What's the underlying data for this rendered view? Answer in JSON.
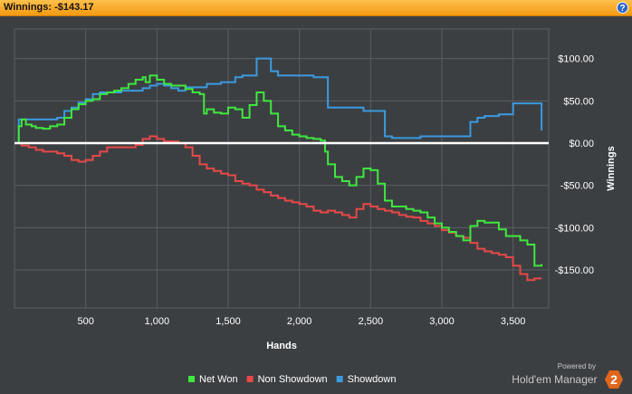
{
  "header": {
    "label": "Winnings:",
    "value": "-$143.17",
    "help_icon": "?"
  },
  "colors": {
    "net_won": "#3ee83e",
    "non_showdown": "#e84848",
    "showdown": "#3a9ae0",
    "zero_line": "#ffffff",
    "plot_bg": "#3c3f42",
    "grid": "#5a5e62",
    "header_bg": "#f39a11"
  },
  "branding": {
    "powered_by": "Powered by",
    "name": "Hold'em Manager",
    "logo_text": "2"
  },
  "chart_data": {
    "type": "line",
    "xlabel": "Hands",
    "ylabel": "Winnings",
    "xlim": [
      0,
      3750
    ],
    "ylim": [
      -195,
      135
    ],
    "x_ticks": [
      500,
      1000,
      1500,
      2000,
      2500,
      3000,
      3500
    ],
    "x_tick_labels": [
      "500",
      "1,000",
      "1,500",
      "2,000",
      "2,500",
      "3,000",
      "3,500"
    ],
    "y_ticks": [
      100,
      50,
      0,
      -50,
      -100,
      -150
    ],
    "y_tick_labels": [
      "$100.00",
      "$50.00",
      "$0.00",
      "-$50.00",
      "-$100.00",
      "-$150.00"
    ],
    "y_axis_position": "right",
    "grid": true,
    "legend_position": "bottom-center",
    "series": [
      {
        "name": "Net Won",
        "points": [
          [
            0,
            0
          ],
          [
            30,
            20
          ],
          [
            50,
            28
          ],
          [
            80,
            22
          ],
          [
            120,
            20
          ],
          [
            150,
            18
          ],
          [
            200,
            17
          ],
          [
            250,
            20
          ],
          [
            300,
            22
          ],
          [
            350,
            30
          ],
          [
            400,
            40
          ],
          [
            450,
            46
          ],
          [
            500,
            50
          ],
          [
            550,
            52
          ],
          [
            600,
            58
          ],
          [
            650,
            60
          ],
          [
            700,
            62
          ],
          [
            750,
            65
          ],
          [
            800,
            70
          ],
          [
            850,
            75
          ],
          [
            900,
            78
          ],
          [
            920,
            72
          ],
          [
            950,
            80
          ],
          [
            1000,
            75
          ],
          [
            1050,
            70
          ],
          [
            1100,
            68
          ],
          [
            1150,
            68
          ],
          [
            1200,
            64
          ],
          [
            1250,
            60
          ],
          [
            1300,
            58
          ],
          [
            1330,
            35
          ],
          [
            1350,
            40
          ],
          [
            1400,
            36
          ],
          [
            1450,
            35
          ],
          [
            1500,
            42
          ],
          [
            1550,
            40
          ],
          [
            1600,
            30
          ],
          [
            1650,
            45
          ],
          [
            1700,
            60
          ],
          [
            1750,
            50
          ],
          [
            1800,
            35
          ],
          [
            1850,
            20
          ],
          [
            1900,
            15
          ],
          [
            1950,
            10
          ],
          [
            2000,
            8
          ],
          [
            2050,
            6
          ],
          [
            2100,
            5
          ],
          [
            2150,
            3
          ],
          [
            2180,
            -10
          ],
          [
            2200,
            -25
          ],
          [
            2250,
            -40
          ],
          [
            2300,
            -45
          ],
          [
            2350,
            -50
          ],
          [
            2400,
            -40
          ],
          [
            2450,
            -30
          ],
          [
            2500,
            -32
          ],
          [
            2550,
            -48
          ],
          [
            2600,
            -68
          ],
          [
            2650,
            -75
          ],
          [
            2700,
            -75
          ],
          [
            2750,
            -78
          ],
          [
            2800,
            -80
          ],
          [
            2850,
            -82
          ],
          [
            2900,
            -88
          ],
          [
            2950,
            -95
          ],
          [
            3000,
            -100
          ],
          [
            3050,
            -105
          ],
          [
            3100,
            -110
          ],
          [
            3150,
            -115
          ],
          [
            3200,
            -98
          ],
          [
            3250,
            -92
          ],
          [
            3300,
            -94
          ],
          [
            3350,
            -94
          ],
          [
            3400,
            -102
          ],
          [
            3450,
            -110
          ],
          [
            3500,
            -110
          ],
          [
            3550,
            -115
          ],
          [
            3600,
            -120
          ],
          [
            3650,
            -145
          ],
          [
            3700,
            -143
          ]
        ]
      },
      {
        "name": "Non Showdown",
        "points": [
          [
            0,
            0
          ],
          [
            50,
            -3
          ],
          [
            100,
            -5
          ],
          [
            150,
            -8
          ],
          [
            200,
            -10
          ],
          [
            250,
            -10
          ],
          [
            300,
            -12
          ],
          [
            350,
            -15
          ],
          [
            400,
            -20
          ],
          [
            450,
            -22
          ],
          [
            500,
            -20
          ],
          [
            550,
            -15
          ],
          [
            600,
            -10
          ],
          [
            650,
            -5
          ],
          [
            700,
            -5
          ],
          [
            750,
            -5
          ],
          [
            800,
            -5
          ],
          [
            850,
            -2
          ],
          [
            900,
            5
          ],
          [
            950,
            8
          ],
          [
            1000,
            5
          ],
          [
            1050,
            2
          ],
          [
            1100,
            2
          ],
          [
            1150,
            0
          ],
          [
            1200,
            -5
          ],
          [
            1250,
            -15
          ],
          [
            1300,
            -25
          ],
          [
            1350,
            -30
          ],
          [
            1400,
            -33
          ],
          [
            1450,
            -36
          ],
          [
            1500,
            -38
          ],
          [
            1550,
            -45
          ],
          [
            1600,
            -48
          ],
          [
            1650,
            -50
          ],
          [
            1700,
            -55
          ],
          [
            1750,
            -58
          ],
          [
            1800,
            -62
          ],
          [
            1850,
            -65
          ],
          [
            1900,
            -68
          ],
          [
            1950,
            -70
          ],
          [
            2000,
            -72
          ],
          [
            2050,
            -75
          ],
          [
            2100,
            -80
          ],
          [
            2150,
            -82
          ],
          [
            2200,
            -80
          ],
          [
            2250,
            -82
          ],
          [
            2300,
            -85
          ],
          [
            2350,
            -88
          ],
          [
            2400,
            -78
          ],
          [
            2450,
            -72
          ],
          [
            2500,
            -75
          ],
          [
            2550,
            -78
          ],
          [
            2600,
            -80
          ],
          [
            2650,
            -82
          ],
          [
            2700,
            -85
          ],
          [
            2750,
            -87
          ],
          [
            2800,
            -88
          ],
          [
            2850,
            -92
          ],
          [
            2900,
            -95
          ],
          [
            2950,
            -98
          ],
          [
            3000,
            -103
          ],
          [
            3050,
            -106
          ],
          [
            3100,
            -110
          ],
          [
            3150,
            -112
          ],
          [
            3200,
            -118
          ],
          [
            3250,
            -125
          ],
          [
            3300,
            -128
          ],
          [
            3350,
            -130
          ],
          [
            3400,
            -132
          ],
          [
            3450,
            -135
          ],
          [
            3500,
            -145
          ],
          [
            3550,
            -155
          ],
          [
            3600,
            -162
          ],
          [
            3650,
            -160
          ],
          [
            3700,
            -160
          ]
        ]
      },
      {
        "name": "Showdown",
        "points": [
          [
            0,
            0
          ],
          [
            30,
            28
          ],
          [
            100,
            28
          ],
          [
            200,
            28
          ],
          [
            300,
            30
          ],
          [
            350,
            38
          ],
          [
            400,
            42
          ],
          [
            450,
            48
          ],
          [
            500,
            52
          ],
          [
            550,
            58
          ],
          [
            600,
            60
          ],
          [
            650,
            60
          ],
          [
            700,
            60
          ],
          [
            750,
            62
          ],
          [
            800,
            62
          ],
          [
            850,
            62
          ],
          [
            900,
            65
          ],
          [
            950,
            68
          ],
          [
            1000,
            70
          ],
          [
            1050,
            68
          ],
          [
            1100,
            65
          ],
          [
            1150,
            62
          ],
          [
            1200,
            66
          ],
          [
            1250,
            66
          ],
          [
            1300,
            66
          ],
          [
            1350,
            70
          ],
          [
            1400,
            70
          ],
          [
            1450,
            72
          ],
          [
            1500,
            72
          ],
          [
            1550,
            78
          ],
          [
            1600,
            80
          ],
          [
            1650,
            80
          ],
          [
            1700,
            100
          ],
          [
            1750,
            100
          ],
          [
            1800,
            85
          ],
          [
            1850,
            80
          ],
          [
            1900,
            80
          ],
          [
            1950,
            80
          ],
          [
            2000,
            80
          ],
          [
            2050,
            80
          ],
          [
            2100,
            78
          ],
          [
            2150,
            78
          ],
          [
            2200,
            42
          ],
          [
            2250,
            42
          ],
          [
            2300,
            42
          ],
          [
            2350,
            42
          ],
          [
            2400,
            42
          ],
          [
            2450,
            38
          ],
          [
            2500,
            38
          ],
          [
            2550,
            38
          ],
          [
            2600,
            8
          ],
          [
            2650,
            6
          ],
          [
            2700,
            6
          ],
          [
            2750,
            6
          ],
          [
            2800,
            6
          ],
          [
            2850,
            8
          ],
          [
            2900,
            8
          ],
          [
            2950,
            8
          ],
          [
            3000,
            8
          ],
          [
            3050,
            8
          ],
          [
            3100,
            8
          ],
          [
            3150,
            8
          ],
          [
            3200,
            25
          ],
          [
            3250,
            30
          ],
          [
            3300,
            32
          ],
          [
            3350,
            32
          ],
          [
            3400,
            34
          ],
          [
            3450,
            34
          ],
          [
            3500,
            47
          ],
          [
            3550,
            47
          ],
          [
            3600,
            47
          ],
          [
            3650,
            47
          ],
          [
            3700,
            15
          ]
        ]
      }
    ]
  }
}
